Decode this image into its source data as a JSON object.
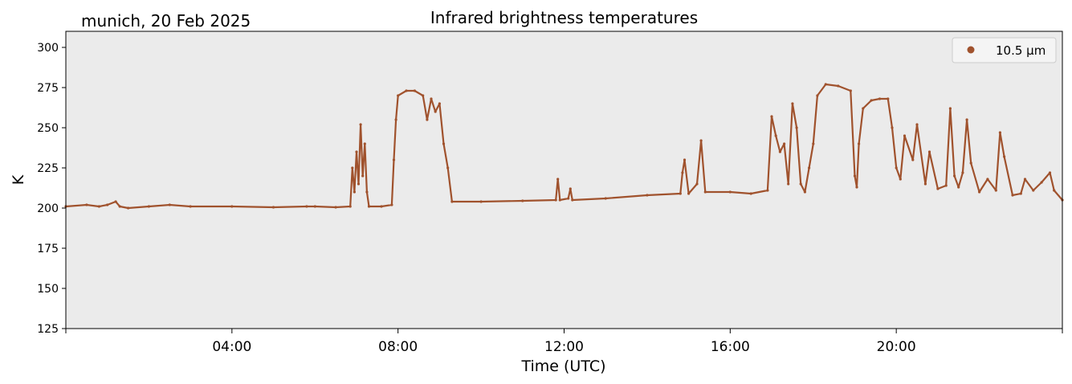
{
  "header": {
    "location_date": "munich, 20 Feb 2025",
    "title": "Infrared brightness temperatures"
  },
  "chart_data": {
    "type": "scatter",
    "title": "Infrared brightness temperatures",
    "xlabel": "Time (UTC)",
    "ylabel": "K",
    "xlim": [
      0,
      24
    ],
    "ylim": [
      125,
      310
    ],
    "x_ticks": [
      {
        "value": 4,
        "label": "04:00"
      },
      {
        "value": 8,
        "label": "08:00"
      },
      {
        "value": 12,
        "label": "12:00"
      },
      {
        "value": 16,
        "label": "16:00"
      },
      {
        "value": 20,
        "label": "20:00"
      }
    ],
    "y_ticks": [
      125,
      150,
      175,
      200,
      225,
      250,
      275,
      300
    ],
    "background": "#ebebeb",
    "grid": false,
    "legend": {
      "placement": "top-right"
    },
    "series": [
      {
        "name": "10.5 µm",
        "color": "#a0522d",
        "points": [
          [
            0.0,
            201
          ],
          [
            0.5,
            202
          ],
          [
            0.8,
            201
          ],
          [
            1.0,
            202
          ],
          [
            1.2,
            204
          ],
          [
            1.3,
            201
          ],
          [
            1.5,
            200
          ],
          [
            2.0,
            201
          ],
          [
            2.5,
            202
          ],
          [
            3.0,
            201
          ],
          [
            4.0,
            201
          ],
          [
            5.0,
            200.5
          ],
          [
            5.8,
            201
          ],
          [
            6.0,
            201
          ],
          [
            6.5,
            200.5
          ],
          [
            6.85,
            201
          ],
          [
            6.9,
            225
          ],
          [
            6.95,
            210
          ],
          [
            7.0,
            235
          ],
          [
            7.05,
            215
          ],
          [
            7.1,
            252
          ],
          [
            7.15,
            220
          ],
          [
            7.2,
            240
          ],
          [
            7.25,
            210
          ],
          [
            7.3,
            201
          ],
          [
            7.6,
            201
          ],
          [
            7.85,
            202
          ],
          [
            7.9,
            230
          ],
          [
            7.95,
            255
          ],
          [
            8.0,
            270
          ],
          [
            8.2,
            273
          ],
          [
            8.4,
            273
          ],
          [
            8.6,
            270
          ],
          [
            8.7,
            255
          ],
          [
            8.8,
            268
          ],
          [
            8.9,
            260
          ],
          [
            9.0,
            265
          ],
          [
            9.1,
            240
          ],
          [
            9.2,
            225
          ],
          [
            9.3,
            204
          ],
          [
            10.0,
            204
          ],
          [
            11.0,
            204.5
          ],
          [
            11.8,
            205
          ],
          [
            11.85,
            218
          ],
          [
            11.9,
            205
          ],
          [
            12.1,
            206
          ],
          [
            12.15,
            212
          ],
          [
            12.2,
            205
          ],
          [
            13.0,
            206
          ],
          [
            14.0,
            208
          ],
          [
            14.8,
            209
          ],
          [
            14.85,
            222
          ],
          [
            14.9,
            230
          ],
          [
            15.0,
            209
          ],
          [
            15.2,
            215
          ],
          [
            15.3,
            242
          ],
          [
            15.4,
            210
          ],
          [
            16.0,
            210
          ],
          [
            16.5,
            209
          ],
          [
            16.9,
            211
          ],
          [
            17.0,
            257
          ],
          [
            17.1,
            245
          ],
          [
            17.2,
            235
          ],
          [
            17.3,
            240
          ],
          [
            17.4,
            215
          ],
          [
            17.5,
            265
          ],
          [
            17.6,
            250
          ],
          [
            17.7,
            215
          ],
          [
            17.8,
            210
          ],
          [
            17.9,
            225
          ],
          [
            18.0,
            240
          ],
          [
            18.1,
            270
          ],
          [
            18.3,
            277
          ],
          [
            18.6,
            276
          ],
          [
            18.9,
            273
          ],
          [
            19.0,
            220
          ],
          [
            19.05,
            213
          ],
          [
            19.1,
            240
          ],
          [
            19.2,
            262
          ],
          [
            19.4,
            267
          ],
          [
            19.6,
            268
          ],
          [
            19.8,
            268
          ],
          [
            19.9,
            250
          ],
          [
            20.0,
            225
          ],
          [
            20.1,
            218
          ],
          [
            20.2,
            245
          ],
          [
            20.4,
            230
          ],
          [
            20.5,
            252
          ],
          [
            20.7,
            215
          ],
          [
            20.8,
            235
          ],
          [
            21.0,
            212
          ],
          [
            21.2,
            214
          ],
          [
            21.3,
            262
          ],
          [
            21.4,
            220
          ],
          [
            21.5,
            213
          ],
          [
            21.6,
            222
          ],
          [
            21.7,
            255
          ],
          [
            21.8,
            228
          ],
          [
            22.0,
            210
          ],
          [
            22.2,
            218
          ],
          [
            22.4,
            211
          ],
          [
            22.5,
            247
          ],
          [
            22.6,
            232
          ],
          [
            22.8,
            208
          ],
          [
            23.0,
            209
          ],
          [
            23.1,
            218
          ],
          [
            23.3,
            211
          ],
          [
            23.5,
            216
          ],
          [
            23.7,
            222
          ],
          [
            23.8,
            211
          ],
          [
            24.0,
            205
          ]
        ]
      }
    ]
  }
}
